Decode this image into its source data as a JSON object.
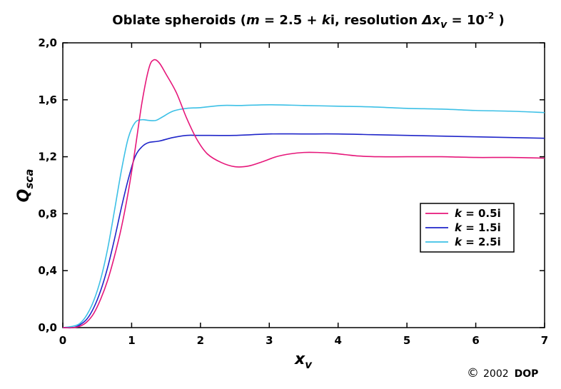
{
  "chart_data": {
    "type": "line",
    "title": {
      "prefix": "Oblate spheroids (",
      "m": "m",
      "eq": " = 2.5 + ",
      "k": "k",
      "mid": "i, resolution ",
      "delta": "Δx",
      "delta_sub": "v",
      "after": " = 10",
      "exp": "-2",
      "close": " )"
    },
    "xlabel": {
      "main": "x",
      "sub": "v"
    },
    "ylabel": {
      "main": "Q",
      "sub": "sca"
    },
    "xlim": [
      0,
      7
    ],
    "ylim": [
      0,
      2.0
    ],
    "xticks": [
      0,
      1,
      2,
      3,
      4,
      5,
      6,
      7
    ],
    "xtick_labels": [
      "0",
      "1",
      "2",
      "3",
      "4",
      "5",
      "6",
      "7"
    ],
    "yticks": [
      0,
      0.4,
      0.8,
      1.2,
      1.6,
      2.0
    ],
    "ytick_labels": [
      "0,0",
      "0,4",
      "0,8",
      "1,2",
      "1,6",
      "2,0"
    ],
    "grid": false,
    "legend_position": "right",
    "series": [
      {
        "name": "k = 0.5i",
        "legend_k": "k",
        "legend_rest": " = 0.5i",
        "color": "#e6177a",
        "points": [
          [
            0,
            0
          ],
          [
            0.15,
            0
          ],
          [
            0.25,
            0.01
          ],
          [
            0.35,
            0.04
          ],
          [
            0.45,
            0.1
          ],
          [
            0.55,
            0.2
          ],
          [
            0.65,
            0.33
          ],
          [
            0.75,
            0.5
          ],
          [
            0.85,
            0.7
          ],
          [
            0.95,
            0.95
          ],
          [
            1.05,
            1.25
          ],
          [
            1.15,
            1.58
          ],
          [
            1.25,
            1.82
          ],
          [
            1.32,
            1.88
          ],
          [
            1.4,
            1.86
          ],
          [
            1.5,
            1.78
          ],
          [
            1.65,
            1.65
          ],
          [
            1.8,
            1.47
          ],
          [
            1.95,
            1.32
          ],
          [
            2.1,
            1.22
          ],
          [
            2.3,
            1.16
          ],
          [
            2.5,
            1.13
          ],
          [
            2.7,
            1.135
          ],
          [
            2.9,
            1.165
          ],
          [
            3.1,
            1.2
          ],
          [
            3.3,
            1.22
          ],
          [
            3.5,
            1.23
          ],
          [
            3.7,
            1.23
          ],
          [
            3.9,
            1.225
          ],
          [
            4.1,
            1.215
          ],
          [
            4.3,
            1.205
          ],
          [
            4.6,
            1.2
          ],
          [
            5.0,
            1.2
          ],
          [
            5.5,
            1.2
          ],
          [
            6.0,
            1.195
          ],
          [
            6.5,
            1.195
          ],
          [
            7.0,
            1.19
          ]
        ]
      },
      {
        "name": "k = 1.5i",
        "legend_k": "k",
        "legend_rest": " = 1.5i",
        "color": "#1f25c9",
        "points": [
          [
            0,
            0
          ],
          [
            0.15,
            0
          ],
          [
            0.25,
            0.02
          ],
          [
            0.35,
            0.06
          ],
          [
            0.45,
            0.14
          ],
          [
            0.55,
            0.26
          ],
          [
            0.65,
            0.42
          ],
          [
            0.75,
            0.62
          ],
          [
            0.85,
            0.84
          ],
          [
            0.95,
            1.04
          ],
          [
            1.05,
            1.2
          ],
          [
            1.15,
            1.27
          ],
          [
            1.25,
            1.3
          ],
          [
            1.4,
            1.31
          ],
          [
            1.6,
            1.335
          ],
          [
            1.8,
            1.35
          ],
          [
            2.0,
            1.35
          ],
          [
            2.5,
            1.35
          ],
          [
            3.0,
            1.36
          ],
          [
            3.5,
            1.36
          ],
          [
            4.0,
            1.36
          ],
          [
            4.5,
            1.355
          ],
          [
            5.0,
            1.35
          ],
          [
            5.5,
            1.345
          ],
          [
            6.0,
            1.34
          ],
          [
            6.5,
            1.335
          ],
          [
            7.0,
            1.33
          ]
        ]
      },
      {
        "name": "k = 2.5i",
        "legend_k": "k",
        "legend_rest": " = 2.5i",
        "color": "#3cc0e6",
        "points": [
          [
            0,
            0
          ],
          [
            0.15,
            0.01
          ],
          [
            0.25,
            0.03
          ],
          [
            0.35,
            0.09
          ],
          [
            0.45,
            0.19
          ],
          [
            0.55,
            0.34
          ],
          [
            0.65,
            0.55
          ],
          [
            0.75,
            0.82
          ],
          [
            0.85,
            1.1
          ],
          [
            0.95,
            1.33
          ],
          [
            1.05,
            1.44
          ],
          [
            1.15,
            1.46
          ],
          [
            1.25,
            1.455
          ],
          [
            1.35,
            1.455
          ],
          [
            1.45,
            1.48
          ],
          [
            1.6,
            1.52
          ],
          [
            1.8,
            1.54
          ],
          [
            2.0,
            1.545
          ],
          [
            2.3,
            1.56
          ],
          [
            2.6,
            1.56
          ],
          [
            3.0,
            1.565
          ],
          [
            3.5,
            1.56
          ],
          [
            4.0,
            1.555
          ],
          [
            4.5,
            1.55
          ],
          [
            5.0,
            1.54
          ],
          [
            5.5,
            1.535
          ],
          [
            6.0,
            1.525
          ],
          [
            6.5,
            1.52
          ],
          [
            7.0,
            1.51
          ]
        ]
      }
    ]
  },
  "footer": {
    "copyright_symbol": "©",
    "year": "2002",
    "org": "DOP"
  }
}
